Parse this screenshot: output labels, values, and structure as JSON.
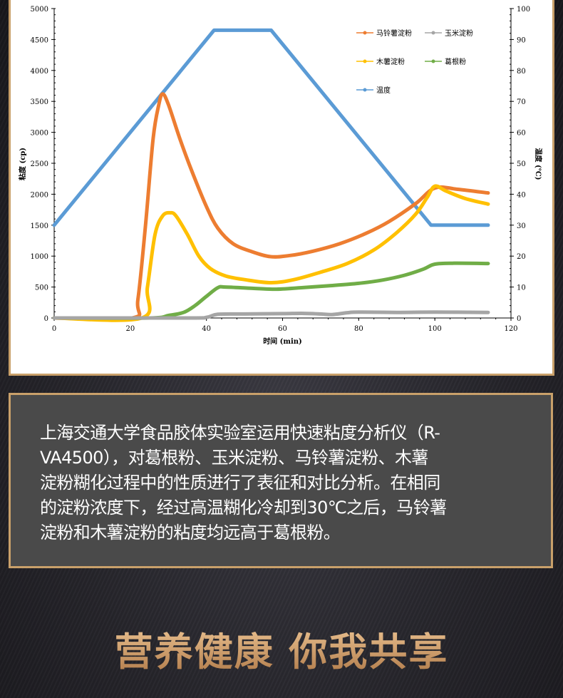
{
  "chart_data": {
    "type": "line",
    "xlabel": "时间 (min)",
    "ylabel": "粘度 (cp)",
    "y2label": "温度 (℃)",
    "xlim": [
      0,
      120
    ],
    "ylim": [
      0,
      5000
    ],
    "y2lim": [
      0,
      100
    ],
    "xticks": [
      0,
      20,
      40,
      60,
      80,
      100,
      120
    ],
    "yticks": [
      0,
      500,
      1000,
      1500,
      2000,
      2500,
      3000,
      3500,
      4000,
      4500,
      5000
    ],
    "y2ticks": [
      0,
      10,
      20,
      30,
      40,
      50,
      60,
      70,
      80,
      90,
      100
    ],
    "grid": false,
    "legend_position": "top-right",
    "series": [
      {
        "name": "马铃薯淀粉",
        "axis": "left",
        "color": "#ed7d31",
        "x": [
          0,
          20.5,
          22,
          24,
          26,
          27.5,
          28.5,
          30,
          33,
          36,
          40,
          43,
          47,
          52,
          57,
          62,
          68,
          75,
          82,
          88,
          95,
          100,
          106,
          114
        ],
        "y": [
          0,
          0,
          300,
          1500,
          2900,
          3450,
          3620,
          3450,
          2900,
          2400,
          1800,
          1450,
          1200,
          1070,
          990,
          1010,
          1080,
          1200,
          1370,
          1560,
          1850,
          2100,
          2080,
          2020
        ]
      },
      {
        "name": "玉米淀粉",
        "axis": "left",
        "color": "#a5a5a5",
        "x": [
          0,
          35,
          40,
          43,
          50,
          60,
          65,
          70,
          73,
          77,
          80,
          90,
          100,
          114
        ],
        "y": [
          0,
          0,
          10,
          60,
          65,
          70,
          75,
          65,
          55,
          85,
          95,
          90,
          95,
          90
        ]
      },
      {
        "name": "木薯淀粉",
        "axis": "left",
        "color": "#ffc000",
        "x": [
          0,
          23,
          24.5,
          26.5,
          28.5,
          30.5,
          32,
          35,
          38,
          41,
          45,
          50,
          57,
          63,
          70,
          77,
          84,
          90,
          95,
          98,
          100,
          103,
          108,
          114
        ],
        "y": [
          0,
          0,
          500,
          1350,
          1650,
          1700,
          1650,
          1350,
          1000,
          800,
          680,
          620,
          570,
          620,
          740,
          880,
          1100,
          1380,
          1680,
          1950,
          2130,
          2050,
          1930,
          1840
        ]
      },
      {
        "name": "葛根粉",
        "axis": "left",
        "color": "#70ad47",
        "x": [
          0,
          25,
          30,
          34,
          37,
          40,
          43,
          45,
          52,
          58,
          65,
          72,
          80,
          86,
          92,
          97,
          100,
          105,
          114
        ],
        "y": [
          0,
          0,
          40,
          90,
          200,
          350,
          490,
          500,
          480,
          465,
          490,
          520,
          560,
          610,
          690,
          790,
          870,
          885,
          880
        ]
      },
      {
        "name": "温度",
        "axis": "right",
        "color": "#5b9bd5",
        "x": [
          0,
          42,
          57,
          99,
          114
        ],
        "y": [
          30,
          93,
          93,
          30,
          30
        ]
      }
    ]
  },
  "text_panel": {
    "lines": [
      "上海交通大学食品胶体实验室运用快速粘度分析仪（R-",
      "VA4500），对葛根粉、玉米淀粉、马铃薯淀粉、木薯",
      "淀粉糊化过程中的性质进行了表征和对比分析。在相同",
      "的淀粉浓度下，经过高温糊化冷却到30℃之后，马铃薯",
      "淀粉和木薯淀粉的粘度均远高于葛根粉。"
    ]
  },
  "slogan": "营养健康 你我共享",
  "colors": {
    "border_gold": "#c9a06a",
    "panel_gray": "#4a4a4a"
  }
}
